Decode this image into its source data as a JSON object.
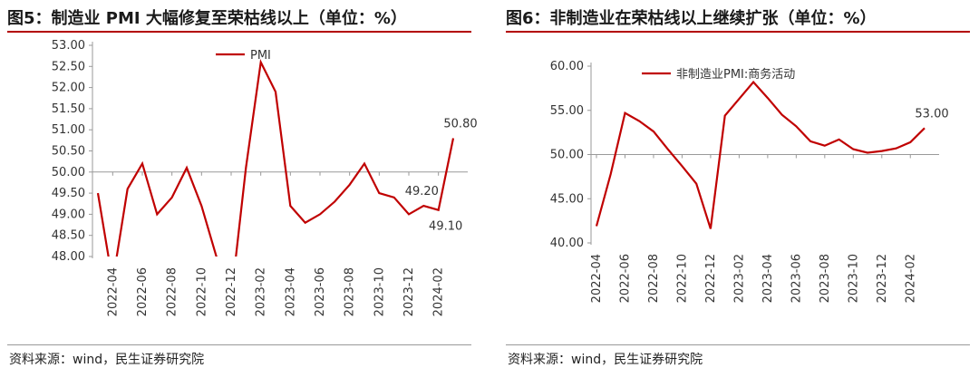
{
  "chart_data": [
    {
      "type": "line",
      "panel_title": "图5：制造业 PMI 大幅修复至荣枯线以上（单位：%）",
      "source": "资料来源：wind，民生证券研究院",
      "series": [
        {
          "name": "PMI",
          "color": "#c00000",
          "x": [
            "2022-03",
            "2022-04",
            "2022-05",
            "2022-06",
            "2022-07",
            "2022-08",
            "2022-09",
            "2022-10",
            "2022-11",
            "2022-12",
            "2023-01",
            "2023-02",
            "2023-03",
            "2023-04",
            "2023-05",
            "2023-06",
            "2023-07",
            "2023-08",
            "2023-09",
            "2023-10",
            "2023-11",
            "2023-12",
            "2024-01",
            "2024-02",
            "2024-03"
          ],
          "values": [
            49.5,
            47.4,
            49.6,
            50.2,
            49.0,
            49.4,
            50.1,
            49.2,
            48.0,
            47.0,
            50.1,
            52.6,
            51.9,
            49.2,
            48.8,
            49.0,
            49.3,
            49.7,
            50.2,
            49.5,
            49.4,
            49.0,
            49.2,
            49.1,
            50.8
          ]
        }
      ],
      "tick_labels": [
        "2022-04",
        "2022-06",
        "2022-08",
        "2022-10",
        "2022-12",
        "2023-02",
        "2023-04",
        "2023-06",
        "2023-08",
        "2023-10",
        "2023-12",
        "2024-02"
      ],
      "y_ticks": [
        "48.00",
        "48.50",
        "49.00",
        "49.50",
        "50.00",
        "50.50",
        "51.00",
        "51.50",
        "52.00",
        "52.50",
        "53.00"
      ],
      "ylim": [
        48,
        53
      ],
      "data_labels": [
        {
          "text": "50.80",
          "x": "2024-03",
          "y": 50.8,
          "pos": "above"
        },
        {
          "text": "49.20",
          "x": "2024-01",
          "y": 49.2,
          "pos": "above"
        },
        {
          "text": "49.10",
          "x": "2024-02",
          "y": 49.1,
          "pos": "below"
        }
      ],
      "legend_position": "top-center",
      "grid": false
    },
    {
      "type": "line",
      "panel_title": "图6：非制造业在荣枯线以上继续扩张（单位：%）",
      "source": "资料来源：wind，民生证券研究院",
      "series": [
        {
          "name": "非制造业PMI:商务活动",
          "color": "#c00000",
          "x": [
            "2022-04",
            "2022-05",
            "2022-06",
            "2022-07",
            "2022-08",
            "2022-09",
            "2022-10",
            "2022-11",
            "2022-12",
            "2023-01",
            "2023-02",
            "2023-03",
            "2023-04",
            "2023-05",
            "2023-06",
            "2023-07",
            "2023-08",
            "2023-09",
            "2023-10",
            "2023-11",
            "2023-12",
            "2024-01",
            "2024-02",
            "2024-03"
          ],
          "values": [
            41.9,
            47.8,
            54.7,
            53.8,
            52.6,
            50.6,
            48.7,
            46.7,
            41.6,
            54.4,
            56.3,
            58.2,
            56.4,
            54.5,
            53.2,
            51.5,
            51.0,
            51.7,
            50.6,
            50.2,
            50.4,
            50.7,
            51.4,
            53.0
          ]
        }
      ],
      "tick_labels": [
        "2022-04",
        "2022-06",
        "2022-08",
        "2022-10",
        "2022-12",
        "2023-02",
        "2023-04",
        "2023-06",
        "2023-08",
        "2023-10",
        "2023-12",
        "2024-02"
      ],
      "y_ticks": [
        "40.00",
        "45.00",
        "50.00",
        "55.00",
        "60.00"
      ],
      "ylim": [
        40,
        60
      ],
      "data_labels": [
        {
          "text": "53.00",
          "x": "2024-03",
          "y": 53.0,
          "pos": "above"
        }
      ],
      "legend_position": "top-center",
      "grid": false
    }
  ]
}
